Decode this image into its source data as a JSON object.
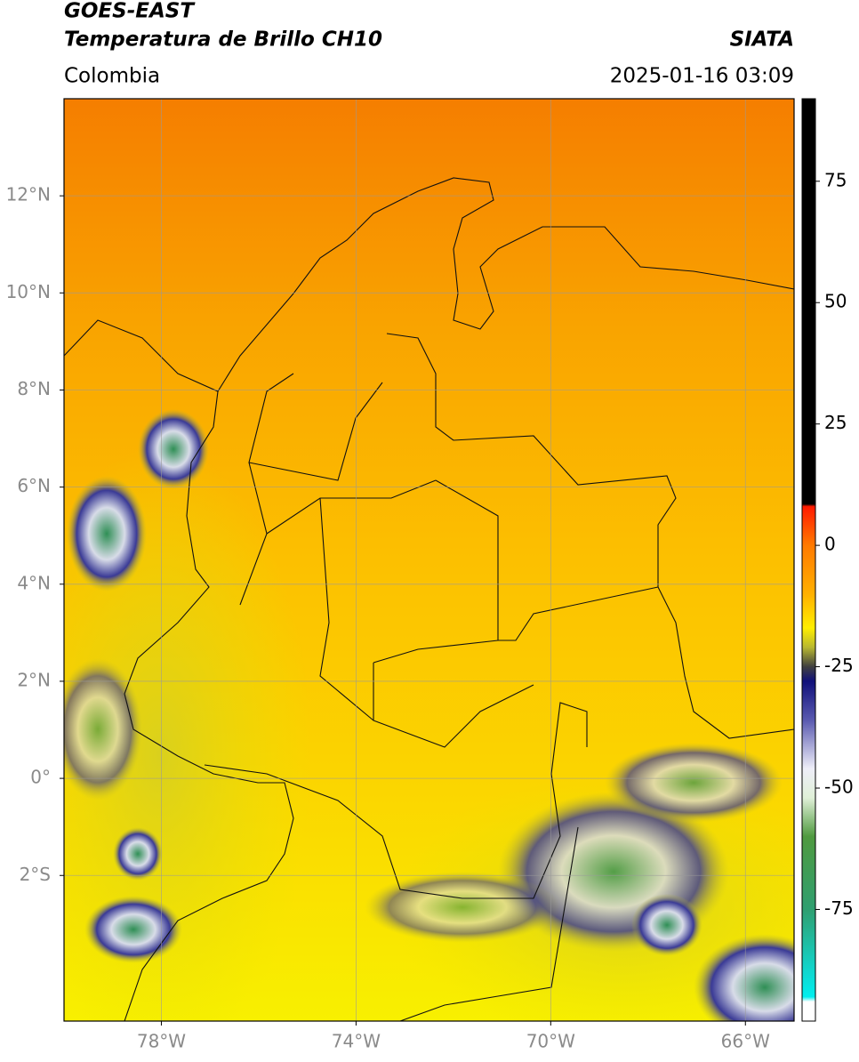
{
  "header": {
    "title": "GOES-EAST",
    "subtitle": "Temperatura de Brillo CH10",
    "source": "SIATA",
    "region": "Colombia",
    "datetime": "2025-01-16 03:09"
  },
  "map": {
    "lonlim": [
      -80,
      -65
    ],
    "latlim": [
      -5,
      14
    ],
    "xticks": [
      {
        "value": -78,
        "label": "78°W"
      },
      {
        "value": -74,
        "label": "74°W"
      },
      {
        "value": -70,
        "label": "70°W"
      },
      {
        "value": -66,
        "label": "66°W"
      }
    ],
    "yticks": [
      {
        "value": 12,
        "label": "12°N"
      },
      {
        "value": 10,
        "label": "10°N"
      },
      {
        "value": 8,
        "label": "8°N"
      },
      {
        "value": 6,
        "label": "6°N"
      },
      {
        "value": 4,
        "label": "4°N"
      },
      {
        "value": 2,
        "label": "2°N"
      },
      {
        "value": 0,
        "label": "0°"
      },
      {
        "value": -2,
        "label": "2°S"
      }
    ],
    "grid": true
  },
  "colorbar": {
    "lim": [
      -98,
      92
    ],
    "ticks": [
      75,
      50,
      25,
      0,
      -25,
      -50,
      -75
    ],
    "stops": [
      {
        "value": 92,
        "color": "#000000"
      },
      {
        "value": 8.5,
        "color": "#000000"
      },
      {
        "value": 8,
        "color": "#ff1a00"
      },
      {
        "value": 0,
        "color": "#ff7a00"
      },
      {
        "value": -10,
        "color": "#ffb000"
      },
      {
        "value": -17,
        "color": "#ffee00"
      },
      {
        "value": -21,
        "color": "#b8b830"
      },
      {
        "value": -25,
        "color": "#404040"
      },
      {
        "value": -28,
        "color": "#10107a"
      },
      {
        "value": -36,
        "color": "#5a5ab0"
      },
      {
        "value": -46,
        "color": "#eeeef8"
      },
      {
        "value": -52,
        "color": "#e0f0d8"
      },
      {
        "value": -60,
        "color": "#4f9a3f"
      },
      {
        "value": -75,
        "color": "#2f9f70"
      },
      {
        "value": -88,
        "color": "#10d8d0"
      },
      {
        "value": -93,
        "color": "#00eeee"
      },
      {
        "value": -94,
        "color": "#ffffff"
      },
      {
        "value": -98,
        "color": "#ffffff"
      }
    ]
  }
}
